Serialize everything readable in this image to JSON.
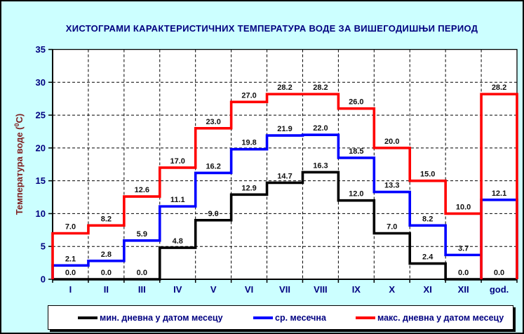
{
  "chart_data": {
    "type": "line",
    "subtype": "step-histogram",
    "title": "ХИСТОГРАМИ КАРАКТЕРИСТИЧНИХ ТЕМПЕРАТУРА ВОДЕ ЗА ВИШЕГОДИШЊИ ПЕРИОД",
    "ylabel": "Температура воде (⁰C)",
    "ylabel_prefix": "Температура воде (",
    "ylabel_sup": "0",
    "ylabel_suffix": "C)",
    "xlabel": "",
    "categories": [
      "I",
      "II",
      "III",
      "IV",
      "V",
      "VI",
      "VII",
      "VIII",
      "IX",
      "X",
      "XI",
      "XII",
      "god."
    ],
    "series": [
      {
        "name": "мин. дневна у датом месецу",
        "color": "#000000",
        "values": [
          0.0,
          0.0,
          0.0,
          4.8,
          9.0,
          12.9,
          14.7,
          16.3,
          12.0,
          7.0,
          2.4,
          0.0,
          0.0
        ]
      },
      {
        "name": "ср. месечна",
        "color": "#0000ff",
        "values": [
          2.1,
          2.8,
          5.9,
          11.1,
          16.2,
          19.8,
          21.9,
          22.0,
          18.5,
          13.3,
          8.2,
          3.7,
          12.1
        ]
      },
      {
        "name": "макс. дневна у датом месецу",
        "color": "#ff0000",
        "values": [
          7.0,
          8.2,
          12.6,
          17.0,
          23.0,
          27.0,
          28.2,
          28.2,
          26.0,
          20.0,
          15.0,
          10.0,
          28.2
        ]
      }
    ],
    "ylim": [
      0,
      35
    ],
    "yticks": [
      0,
      5,
      10,
      15,
      20,
      25,
      30,
      35
    ],
    "grid": true,
    "legend_position": "bottom"
  },
  "colors": {
    "background": "#ccffff",
    "plot_background": "#ffffff",
    "title_text": "#000080",
    "axis_text": "#000080",
    "y_axis_title_text": "#7f2020",
    "value_label_text": "#111111",
    "grid": "#000000",
    "series_min": "#000000",
    "series_mean": "#0000ff",
    "series_max": "#ff0000"
  }
}
